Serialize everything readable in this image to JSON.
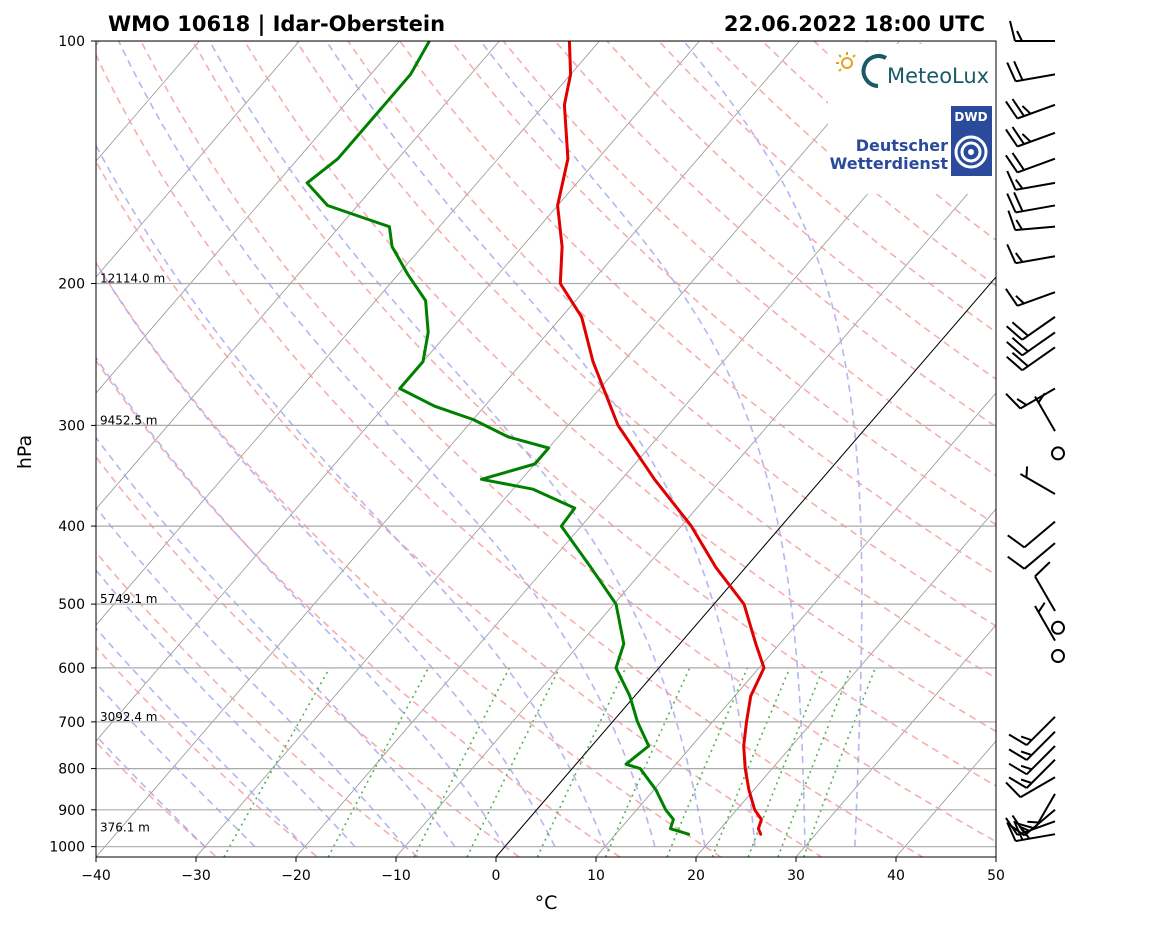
{
  "title_left": "WMO 10618 | Idar-Oberstein",
  "title_right": "22.06.2022 18:00 UTC",
  "logos": {
    "meteolux": "MeteoLux",
    "dwd_badge": "DWD",
    "dwd_line1": "Deutscher",
    "dwd_line2": "Wetterdienst"
  },
  "colors": {
    "temperature": "#e00000",
    "dewpoint": "#008000",
    "dry_adiabat": "#f4a0a0",
    "moist_adiabat": "#a8a8ee",
    "mixing_ratio": "#55b055",
    "isotherm": "#888888",
    "isobar": "#aaaaaa"
  },
  "chart_data": {
    "type": "line",
    "subtype": "skew-T log-p diagram",
    "xlabel": "°C",
    "ylabel": "hPa",
    "xlim": [
      -40,
      50
    ],
    "ylim": [
      1030,
      100
    ],
    "y_scale": "log",
    "x_ticks": [
      -40,
      -30,
      -20,
      -10,
      0,
      10,
      20,
      30,
      40,
      50
    ],
    "x_tick_labels": [
      "−40",
      "−30",
      "−20",
      "−10",
      "0",
      "10",
      "20",
      "30",
      "40",
      "50"
    ],
    "y_ticks": [
      100,
      200,
      300,
      400,
      500,
      600,
      700,
      800,
      900,
      1000
    ],
    "y_tick_labels": [
      "100",
      "200",
      "300",
      "400",
      "500",
      "600",
      "700",
      "800",
      "900",
      "1000"
    ],
    "height_labels": [
      {
        "p": 200,
        "text": "12114.0 m"
      },
      {
        "p": 300,
        "text": "9452.5 m"
      },
      {
        "p": 500,
        "text": "5749.1 m"
      },
      {
        "p": 700,
        "text": "3092.4 m"
      },
      {
        "p": 960,
        "text": "376.1 m"
      }
    ],
    "series": [
      {
        "role": "temperature",
        "points": [
          [
            965,
            24.5
          ],
          [
            950,
            23.8
          ],
          [
            925,
            23.3
          ],
          [
            900,
            21.8
          ],
          [
            850,
            19.5
          ],
          [
            800,
            17.3
          ],
          [
            750,
            15.2
          ],
          [
            700,
            13.4
          ],
          [
            650,
            11.6
          ],
          [
            600,
            10.5
          ],
          [
            560,
            7.6
          ],
          [
            500,
            3.0
          ],
          [
            450,
            -3.0
          ],
          [
            400,
            -9.0
          ],
          [
            350,
            -16.7
          ],
          [
            300,
            -25.0
          ],
          [
            250,
            -33.0
          ],
          [
            220,
            -38.0
          ],
          [
            200,
            -43.0
          ],
          [
            180,
            -46.0
          ],
          [
            160,
            -50.0
          ],
          [
            140,
            -53.0
          ],
          [
            120,
            -58.0
          ],
          [
            110,
            -60.0
          ],
          [
            100,
            -63.0
          ]
        ]
      },
      {
        "role": "dewpoint",
        "points": [
          [
            965,
            17.3
          ],
          [
            950,
            15.0
          ],
          [
            925,
            14.5
          ],
          [
            900,
            12.9
          ],
          [
            850,
            10.2
          ],
          [
            800,
            6.8
          ],
          [
            790,
            5.0
          ],
          [
            750,
            5.7
          ],
          [
            700,
            2.5
          ],
          [
            650,
            -0.5
          ],
          [
            600,
            -4.3
          ],
          [
            560,
            -5.6
          ],
          [
            500,
            -9.8
          ],
          [
            450,
            -15.5
          ],
          [
            400,
            -22.0
          ],
          [
            380,
            -22.2
          ],
          [
            360,
            -28.0
          ],
          [
            350,
            -34.0
          ],
          [
            335,
            -30.0
          ],
          [
            320,
            -30.0
          ],
          [
            310,
            -35.0
          ],
          [
            295,
            -40.0
          ],
          [
            284,
            -45.0
          ],
          [
            270,
            -50.0
          ],
          [
            250,
            -50.0
          ],
          [
            230,
            -52.0
          ],
          [
            210,
            -55.0
          ],
          [
            195,
            -59.0
          ],
          [
            180,
            -63.0
          ],
          [
            170,
            -65.0
          ],
          [
            160,
            -73.0
          ],
          [
            150,
            -77.0
          ],
          [
            140,
            -76.0
          ],
          [
            120,
            -76.0
          ],
          [
            110,
            -76.0
          ],
          [
            100,
            -77.0
          ]
        ]
      }
    ],
    "wind_barbs": [
      {
        "p": 965,
        "speed_kt": 25,
        "dir_deg": 260
      },
      {
        "p": 930,
        "speed_kt": 20,
        "dir_deg": 250
      },
      {
        "p": 900,
        "speed_kt": 15,
        "dir_deg": 230
      },
      {
        "p": 860,
        "speed_kt": 15,
        "dir_deg": 210
      },
      {
        "p": 820,
        "speed_kt": 10,
        "dir_deg": 240
      },
      {
        "p": 780,
        "speed_kt": 15,
        "dir_deg": 225
      },
      {
        "p": 750,
        "speed_kt": 15,
        "dir_deg": 225
      },
      {
        "p": 720,
        "speed_kt": 15,
        "dir_deg": 225
      },
      {
        "p": 690,
        "speed_kt": 15,
        "dir_deg": 225
      },
      {
        "p": 580,
        "speed_kt": 0,
        "dir_deg": 0
      },
      {
        "p": 555,
        "speed_kt": 5,
        "dir_deg": 330
      },
      {
        "p": 535,
        "speed_kt": 0,
        "dir_deg": 0
      },
      {
        "p": 510,
        "speed_kt": 10,
        "dir_deg": 330
      },
      {
        "p": 420,
        "speed_kt": 10,
        "dir_deg": 230
      },
      {
        "p": 395,
        "speed_kt": 10,
        "dir_deg": 230
      },
      {
        "p": 365,
        "speed_kt": 5,
        "dir_deg": 300
      },
      {
        "p": 325,
        "speed_kt": 0,
        "dir_deg": 0
      },
      {
        "p": 305,
        "speed_kt": 5,
        "dir_deg": 330
      },
      {
        "p": 270,
        "speed_kt": 15,
        "dir_deg": 240
      },
      {
        "p": 240,
        "speed_kt": 20,
        "dir_deg": 235
      },
      {
        "p": 230,
        "speed_kt": 20,
        "dir_deg": 235
      },
      {
        "p": 220,
        "speed_kt": 20,
        "dir_deg": 235
      },
      {
        "p": 205,
        "speed_kt": 15,
        "dir_deg": 250
      },
      {
        "p": 185,
        "speed_kt": 15,
        "dir_deg": 260
      },
      {
        "p": 170,
        "speed_kt": 15,
        "dir_deg": 265
      },
      {
        "p": 160,
        "speed_kt": 20,
        "dir_deg": 260
      },
      {
        "p": 150,
        "speed_kt": 15,
        "dir_deg": 260
      },
      {
        "p": 140,
        "speed_kt": 20,
        "dir_deg": 250
      },
      {
        "p": 130,
        "speed_kt": 25,
        "dir_deg": 250
      },
      {
        "p": 120,
        "speed_kt": 25,
        "dir_deg": 250
      },
      {
        "p": 110,
        "speed_kt": 20,
        "dir_deg": 260
      },
      {
        "p": 100,
        "speed_kt": 15,
        "dir_deg": 270
      }
    ]
  }
}
